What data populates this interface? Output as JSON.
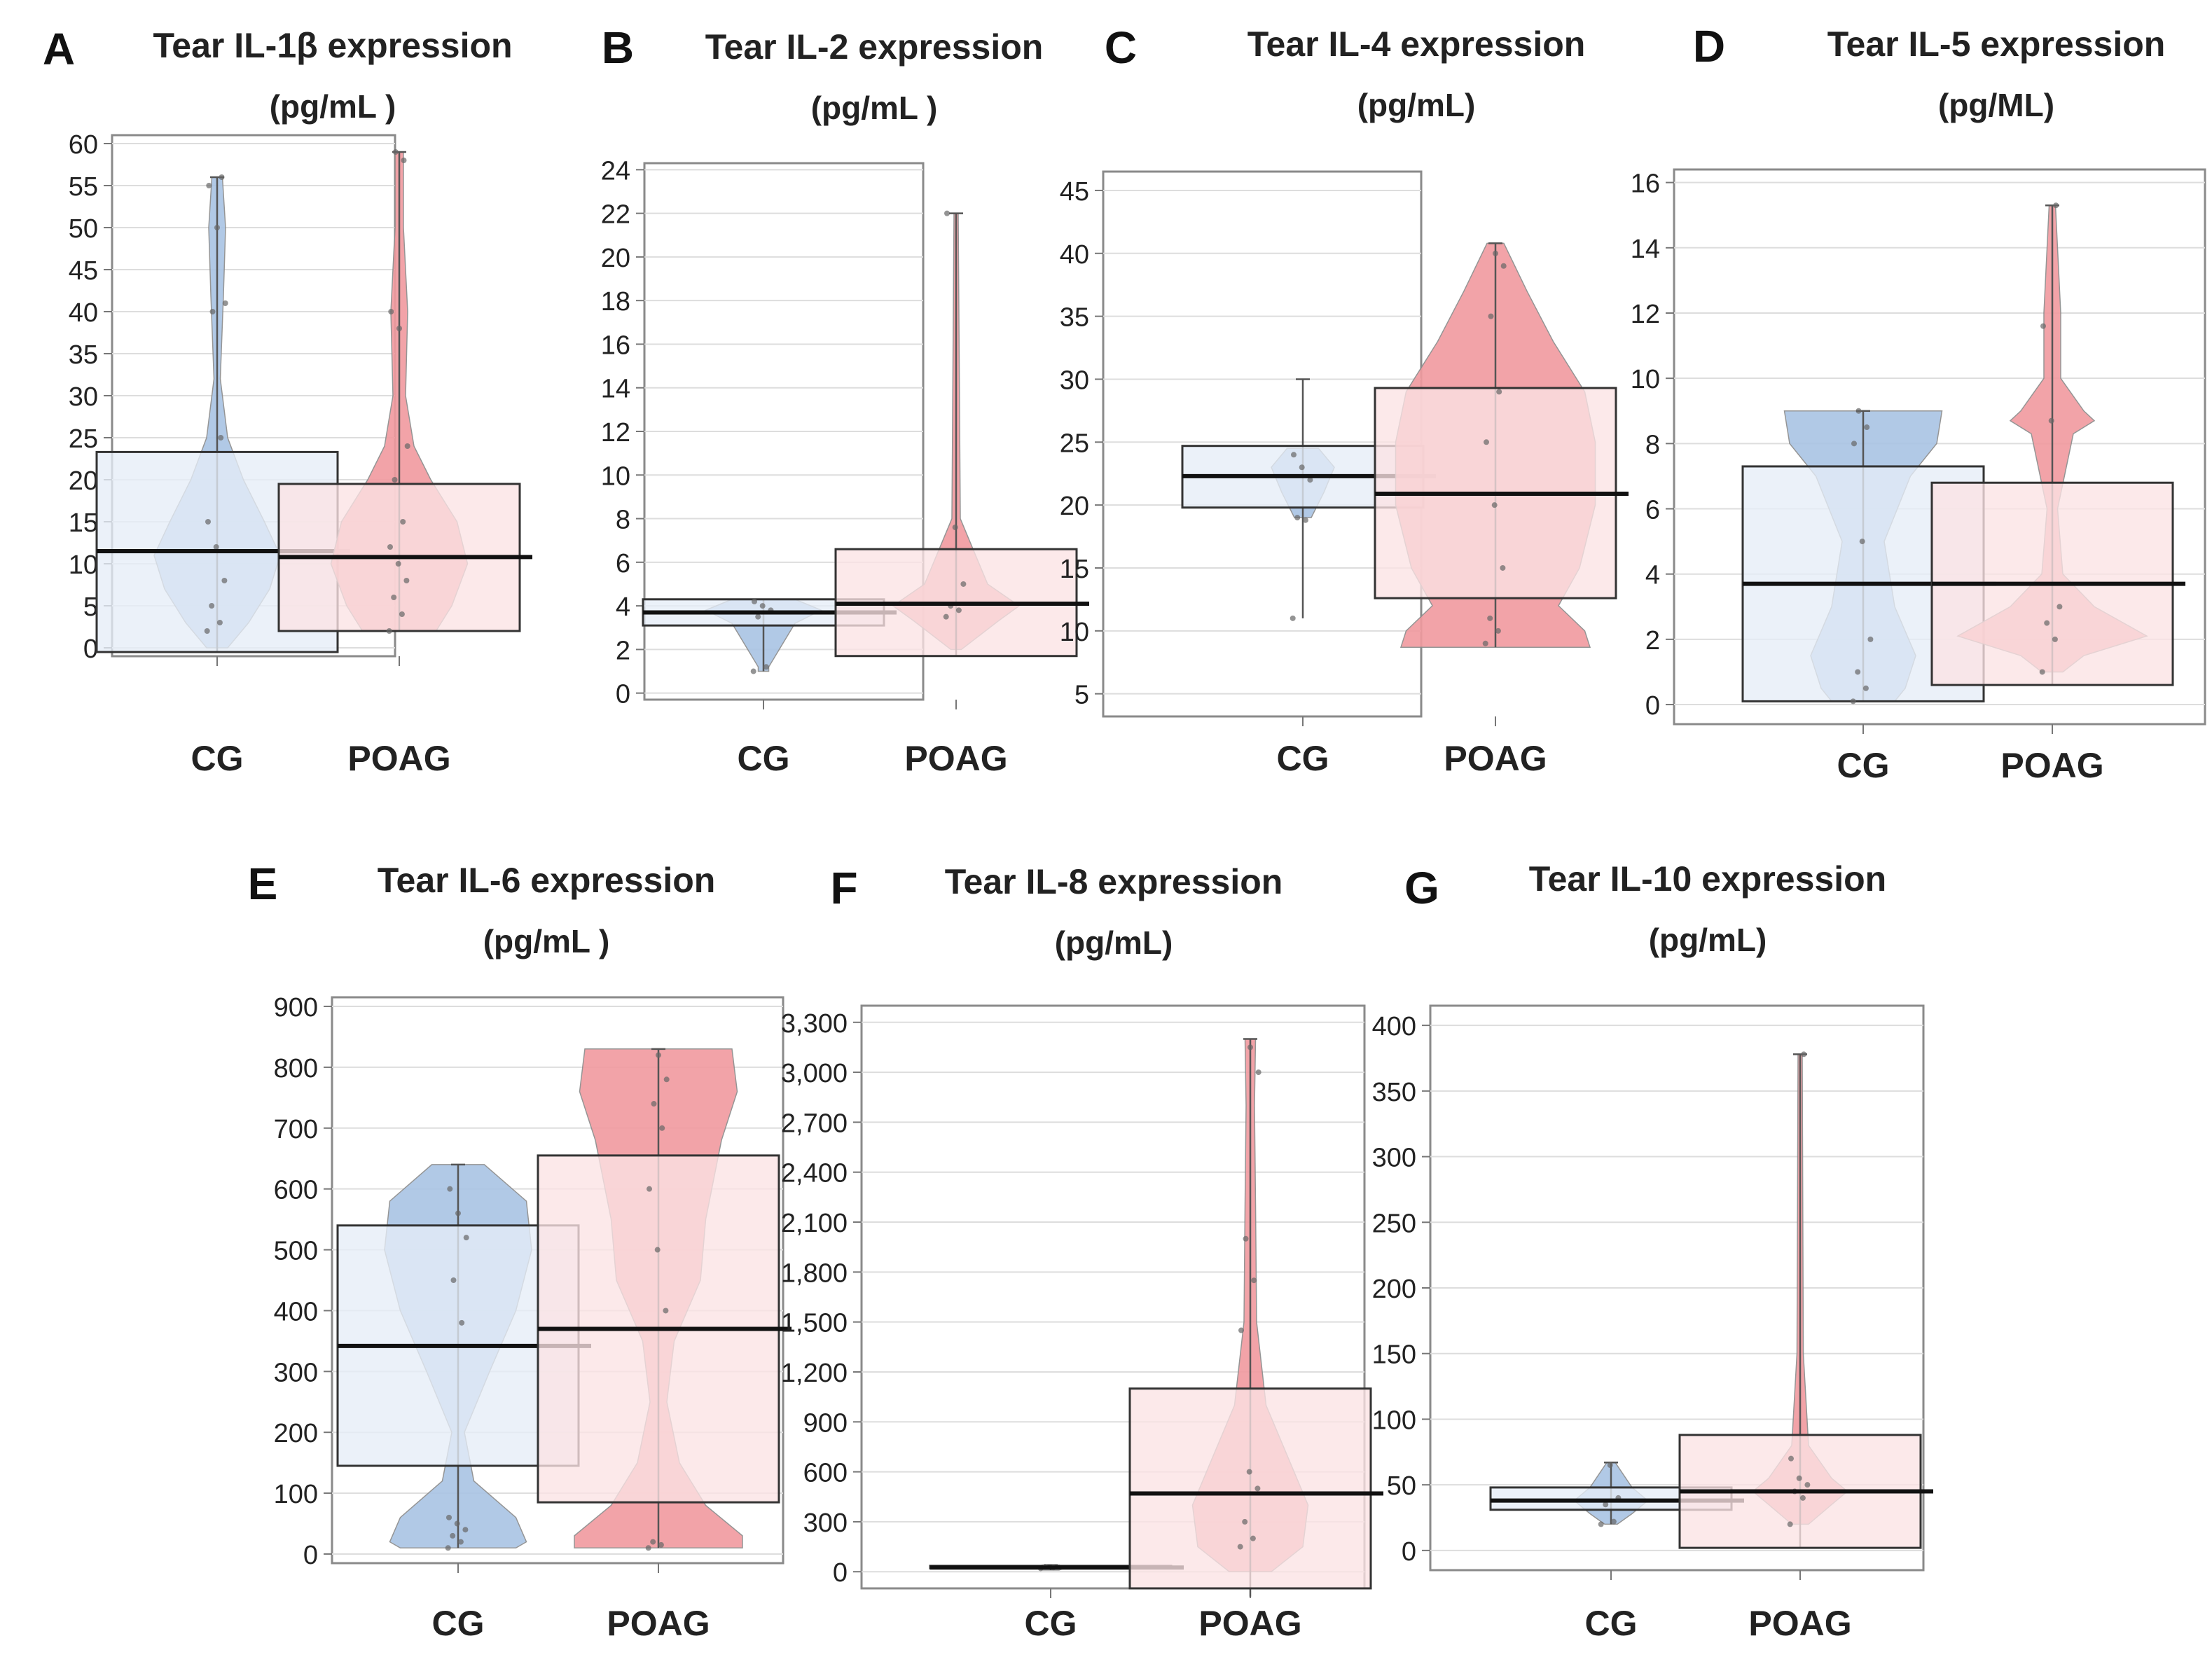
{
  "colors": {
    "cg_fill": "#a9c4e4",
    "cg_fill_light": "#e6edf7",
    "poag_fill": "#f19a9f",
    "poag_fill_light": "#fbe3e4",
    "outline": "#555555",
    "grid": "#dddddd",
    "median": "#111111"
  },
  "chart_data": [
    {
      "letter": "A",
      "type": "box-violin",
      "title": "Tear IL-1β expression",
      "subtitle": "(pg/mL )",
      "categories": [
        "CG",
        "POAG"
      ],
      "yticks": [
        0,
        5,
        10,
        15,
        20,
        25,
        30,
        35,
        40,
        45,
        50,
        55,
        60
      ],
      "ytick_labels": [
        "0",
        "5",
        "10",
        "15",
        "20",
        "25",
        "30",
        "35",
        "40",
        "45",
        "50",
        "55",
        "60"
      ],
      "ylim": [
        -1,
        61
      ],
      "series": [
        {
          "name": "CG",
          "q1": -0.5,
          "median": 11.5,
          "q3": 23.3,
          "whisker_low": -0.5,
          "whisker_high": 56,
          "points": [
            2,
            3,
            5,
            8,
            12,
            15,
            25,
            40,
            41,
            50,
            55,
            56
          ],
          "violin": [
            [
              56,
              0.05
            ],
            [
              50,
              0.08
            ],
            [
              42,
              0.06
            ],
            [
              32,
              0.03
            ],
            [
              25,
              0.1
            ],
            [
              20,
              0.25
            ],
            [
              15,
              0.45
            ],
            [
              11,
              0.6
            ],
            [
              7,
              0.5
            ],
            [
              3,
              0.3
            ],
            [
              0,
              0.1
            ]
          ]
        },
        {
          "name": "POAG",
          "q1": 2,
          "median": 10.8,
          "q3": 19.5,
          "whisker_low": 2,
          "whisker_high": 59,
          "points": [
            2,
            4,
            6,
            8,
            10,
            12,
            15,
            20,
            24,
            38,
            40,
            58,
            59
          ],
          "violin": [
            [
              59,
              0.04
            ],
            [
              50,
              0.04
            ],
            [
              40,
              0.08
            ],
            [
              30,
              0.06
            ],
            [
              24,
              0.14
            ],
            [
              20,
              0.3
            ],
            [
              15,
              0.55
            ],
            [
              10,
              0.65
            ],
            [
              5,
              0.5
            ],
            [
              2,
              0.35
            ]
          ]
        }
      ]
    },
    {
      "letter": "B",
      "type": "box-violin",
      "title": "Tear IL-2 expression",
      "subtitle": "(pg/mL )",
      "categories": [
        "CG",
        "POAG"
      ],
      "yticks": [
        0,
        2,
        4,
        6,
        8,
        10,
        12,
        14,
        16,
        18,
        20,
        22,
        24
      ],
      "ytick_labels": [
        "0",
        "2",
        "4",
        "6",
        "8",
        "10",
        "12",
        "14",
        "16",
        "18",
        "20",
        "22",
        "24"
      ],
      "ylim": [
        -0.3,
        24.3
      ],
      "series": [
        {
          "name": "CG",
          "q1": 3.1,
          "median": 3.7,
          "q3": 4.3,
          "whisker_low": 1.0,
          "whisker_high": 4.3,
          "points": [
            1.0,
            1.2,
            3.5,
            3.8,
            4.0,
            4.2
          ],
          "violin": [
            [
              4.3,
              0.3
            ],
            [
              3.8,
              0.55
            ],
            [
              3.2,
              0.3
            ],
            [
              1.2,
              0.05
            ],
            [
              1.0,
              0.05
            ]
          ]
        },
        {
          "name": "POAG",
          "q1": 1.7,
          "median": 4.1,
          "q3": 6.6,
          "whisker_low": 1.7,
          "whisker_high": 22,
          "points": [
            3.5,
            3.8,
            4.0,
            5.0,
            7.6,
            22
          ],
          "violin": [
            [
              22,
              0.02
            ],
            [
              8,
              0.04
            ],
            [
              5,
              0.3
            ],
            [
              4,
              0.6
            ],
            [
              3.3,
              0.4
            ],
            [
              2,
              0.05
            ]
          ]
        }
      ]
    },
    {
      "letter": "C",
      "type": "box-violin",
      "title": "Tear IL-4 expression",
      "subtitle": "(pg/mL)",
      "categories": [
        "CG",
        "POAG"
      ],
      "yticks": [
        5,
        10,
        15,
        20,
        25,
        30,
        35,
        40,
        45
      ],
      "ytick_labels": [
        "5",
        "10",
        "15",
        "20",
        "25",
        "30",
        "35",
        "40",
        "45"
      ],
      "ylim": [
        3.2,
        46.5
      ],
      "series": [
        {
          "name": "CG",
          "q1": 19.8,
          "median": 22.3,
          "q3": 24.7,
          "whisker_low": 11,
          "whisker_high": 30,
          "points": [
            11,
            18.8,
            19,
            22,
            23,
            24
          ],
          "violin": [
            [
              24.5,
              0.15
            ],
            [
              23,
              0.3
            ],
            [
              21,
              0.2
            ],
            [
              19,
              0.08
            ]
          ]
        },
        {
          "name": "POAG",
          "q1": 12.6,
          "median": 20.9,
          "q3": 29.3,
          "whisker_low": 8.7,
          "whisker_high": 40.8,
          "points": [
            9,
            10,
            11,
            15,
            20,
            25,
            29,
            35,
            39,
            40
          ],
          "violin": [
            [
              40.8,
              0.08
            ],
            [
              37,
              0.3
            ],
            [
              33,
              0.55
            ],
            [
              29,
              0.85
            ],
            [
              25,
              0.95
            ],
            [
              20,
              0.95
            ],
            [
              15,
              0.8
            ],
            [
              12,
              0.6
            ],
            [
              10,
              0.85
            ],
            [
              8.7,
              0.9
            ]
          ]
        }
      ]
    },
    {
      "letter": "D",
      "type": "box-violin",
      "title": "Tear IL-5 expression",
      "subtitle": "(pg/ML)",
      "categories": [
        "CG",
        "POAG"
      ],
      "yticks": [
        0,
        2,
        4,
        6,
        8,
        10,
        12,
        14,
        16
      ],
      "ytick_labels": [
        "0",
        "2",
        "4",
        "6",
        "8",
        "10",
        "12",
        "14",
        "16"
      ],
      "ylim": [
        -0.6,
        16.4
      ],
      "series": [
        {
          "name": "CG",
          "q1": 0.1,
          "median": 3.7,
          "q3": 7.3,
          "whisker_low": 0.1,
          "whisker_high": 9.0,
          "points": [
            0.1,
            0.5,
            1.0,
            2.0,
            5.0,
            8.0,
            8.5,
            9.0
          ],
          "violin": [
            [
              9,
              0.75
            ],
            [
              8,
              0.7
            ],
            [
              7,
              0.45
            ],
            [
              5,
              0.2
            ],
            [
              3,
              0.3
            ],
            [
              1.5,
              0.5
            ],
            [
              0.5,
              0.4
            ],
            [
              0.1,
              0.3
            ]
          ]
        },
        {
          "name": "POAG",
          "q1": 0.6,
          "median": 3.7,
          "q3": 6.8,
          "whisker_low": 0.6,
          "whisker_high": 15.3,
          "points": [
            1,
            2,
            2.5,
            3,
            8.7,
            11.6,
            15.3
          ],
          "violin": [
            [
              15.3,
              0.03
            ],
            [
              12,
              0.08
            ],
            [
              10,
              0.08
            ],
            [
              9,
              0.3
            ],
            [
              8.7,
              0.4
            ],
            [
              8.3,
              0.2
            ],
            [
              6,
              0.05
            ],
            [
              4,
              0.1
            ],
            [
              3,
              0.4
            ],
            [
              2.1,
              0.9
            ],
            [
              1.5,
              0.3
            ],
            [
              1,
              0.1
            ]
          ]
        }
      ]
    },
    {
      "letter": "E",
      "type": "box-violin",
      "title": "Tear IL-6 expression",
      "subtitle": "(pg/mL )",
      "categories": [
        "CG",
        "POAG"
      ],
      "yticks": [
        0,
        100,
        200,
        300,
        400,
        500,
        600,
        700,
        800,
        900
      ],
      "ytick_labels": [
        "0",
        "100",
        "200",
        "300",
        "400",
        "500",
        "600",
        "700",
        "800",
        "900"
      ],
      "ylim": [
        -15,
        915
      ],
      "series": [
        {
          "name": "CG",
          "q1": 145,
          "median": 342,
          "q3": 540,
          "whisker_low": 10,
          "whisker_high": 640,
          "points": [
            10,
            20,
            30,
            40,
            50,
            60,
            380,
            450,
            520,
            560,
            600
          ],
          "violin": [
            [
              640,
              0.25
            ],
            [
              580,
              0.65
            ],
            [
              500,
              0.7
            ],
            [
              400,
              0.55
            ],
            [
              300,
              0.3
            ],
            [
              200,
              0.06
            ],
            [
              120,
              0.15
            ],
            [
              60,
              0.55
            ],
            [
              20,
              0.65
            ],
            [
              10,
              0.55
            ]
          ]
        },
        {
          "name": "POAG",
          "q1": 85,
          "median": 370,
          "q3": 655,
          "whisker_low": 10,
          "whisker_high": 830,
          "points": [
            10,
            15,
            20,
            400,
            500,
            600,
            700,
            740,
            780,
            820
          ],
          "violin": [
            [
              830,
              0.7
            ],
            [
              760,
              0.75
            ],
            [
              680,
              0.6
            ],
            [
              550,
              0.45
            ],
            [
              450,
              0.4
            ],
            [
              350,
              0.15
            ],
            [
              250,
              0.08
            ],
            [
              150,
              0.2
            ],
            [
              80,
              0.45
            ],
            [
              30,
              0.8
            ],
            [
              10,
              0.8
            ]
          ]
        }
      ]
    },
    {
      "letter": "F",
      "type": "box-violin",
      "title": "Tear IL-8 expression",
      "subtitle": "(pg/mL)",
      "categories": [
        "CG",
        "POAG"
      ],
      "yticks": [
        0,
        300,
        600,
        900,
        1200,
        1500,
        1800,
        2100,
        2400,
        2700,
        3000,
        3300
      ],
      "ytick_labels": [
        "0",
        "300",
        "600",
        "900",
        "1,200",
        "1,500",
        "1,800",
        "2,100",
        "2,400",
        "2,700",
        "3,000",
        "3,300"
      ],
      "ylim": [
        -100,
        3400
      ],
      "series": [
        {
          "name": "CG",
          "q1": 20,
          "median": 25,
          "q3": 35,
          "whisker_low": 10,
          "whisker_high": 40,
          "points": [
            20,
            25,
            30
          ],
          "violin": [
            [
              40,
              0.08
            ],
            [
              25,
              0.15
            ],
            [
              10,
              0.08
            ]
          ]
        },
        {
          "name": "POAG",
          "q1": -150,
          "median": 470,
          "q3": 1100,
          "whisker_low": -150,
          "whisker_high": 3200,
          "points": [
            150,
            200,
            300,
            500,
            600,
            1450,
            1750,
            2000,
            3000,
            3150
          ],
          "violin": [
            [
              3200,
              0.05
            ],
            [
              2800,
              0.04
            ],
            [
              2200,
              0.05
            ],
            [
              1500,
              0.06
            ],
            [
              1000,
              0.15
            ],
            [
              700,
              0.35
            ],
            [
              400,
              0.55
            ],
            [
              150,
              0.5
            ],
            [
              0,
              0.2
            ]
          ]
        }
      ]
    },
    {
      "letter": "G",
      "type": "box-violin",
      "title": "Tear IL-10 expression",
      "subtitle": "(pg/mL)",
      "categories": [
        "CG",
        "POAG"
      ],
      "yticks": [
        0,
        50,
        100,
        150,
        200,
        250,
        300,
        350,
        400
      ],
      "ytick_labels": [
        "0",
        "50",
        "100",
        "150",
        "200",
        "250",
        "300",
        "350",
        "400"
      ],
      "ylim": [
        -15,
        415
      ],
      "series": [
        {
          "name": "CG",
          "q1": 31,
          "median": 38,
          "q3": 48,
          "whisker_low": 20,
          "whisker_high": 67,
          "points": [
            20,
            22,
            35,
            40,
            65
          ],
          "violin": [
            [
              67,
              0.04
            ],
            [
              48,
              0.2
            ],
            [
              38,
              0.35
            ],
            [
              28,
              0.2
            ],
            [
              20,
              0.06
            ]
          ]
        },
        {
          "name": "POAG",
          "q1": 2,
          "median": 45,
          "q3": 88,
          "whisker_low": 2,
          "whisker_high": 378,
          "points": [
            20,
            40,
            45,
            50,
            55,
            70,
            378
          ],
          "violin": [
            [
              378,
              0.02
            ],
            [
              150,
              0.03
            ],
            [
              80,
              0.08
            ],
            [
              55,
              0.3
            ],
            [
              45,
              0.45
            ],
            [
              35,
              0.3
            ],
            [
              20,
              0.08
            ]
          ]
        }
      ]
    }
  ]
}
